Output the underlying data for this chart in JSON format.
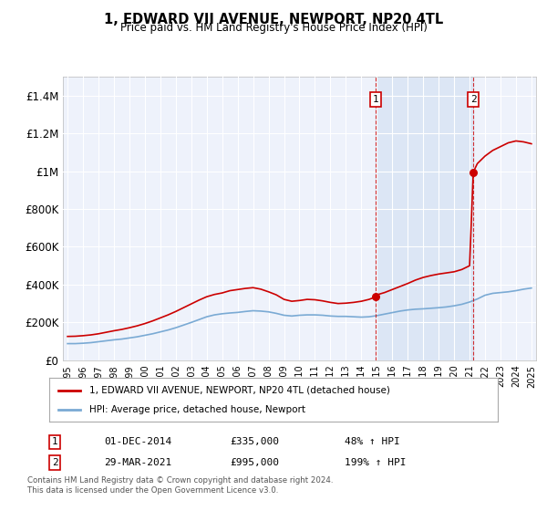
{
  "title": "1, EDWARD VII AVENUE, NEWPORT, NP20 4TL",
  "subtitle": "Price paid vs. HM Land Registry's House Price Index (HPI)",
  "legend_label_red": "1, EDWARD VII AVENUE, NEWPORT, NP20 4TL (detached house)",
  "legend_label_blue": "HPI: Average price, detached house, Newport",
  "sale1_date": "01-DEC-2014",
  "sale1_price": "£335,000",
  "sale1_pct": "48% ↑ HPI",
  "sale2_date": "29-MAR-2021",
  "sale2_price": "£995,000",
  "sale2_pct": "199% ↑ HPI",
  "footnote1": "Contains HM Land Registry data © Crown copyright and database right 2024.",
  "footnote2": "This data is licensed under the Open Government Licence v3.0.",
  "ylim": [
    0,
    1500000
  ],
  "yticks": [
    0,
    200000,
    400000,
    600000,
    800000,
    1000000,
    1200000,
    1400000
  ],
  "ytick_labels": [
    "£0",
    "£200K",
    "£400K",
    "£600K",
    "£800K",
    "£1M",
    "£1.2M",
    "£1.4M"
  ],
  "background_color": "#ffffff",
  "plot_bg_color": "#eef2fb",
  "grid_color": "#ffffff",
  "red_color": "#cc0000",
  "blue_color": "#7aaad4",
  "shade_color": "#dce6f5",
  "sale1_year": 2014.92,
  "sale2_year": 2021.24,
  "sale1_price_val": 335000,
  "sale2_price_val": 995000,
  "hpi_years": [
    1995,
    1995.5,
    1996,
    1996.5,
    1997,
    1997.5,
    1998,
    1998.5,
    1999,
    1999.5,
    2000,
    2000.5,
    2001,
    2001.5,
    2002,
    2002.5,
    2003,
    2003.5,
    2004,
    2004.5,
    2005,
    2005.5,
    2006,
    2006.5,
    2007,
    2007.5,
    2008,
    2008.5,
    2009,
    2009.5,
    2010,
    2010.5,
    2011,
    2011.5,
    2012,
    2012.5,
    2013,
    2013.5,
    2014,
    2014.5,
    2015,
    2015.5,
    2016,
    2016.5,
    2017,
    2017.5,
    2018,
    2018.5,
    2019,
    2019.5,
    2020,
    2020.5,
    2021,
    2021.5,
    2022,
    2022.5,
    2023,
    2023.5,
    2024,
    2024.5,
    2025
  ],
  "hpi_vals": [
    88000,
    88000,
    90000,
    93000,
    98000,
    103000,
    108000,
    112000,
    118000,
    124000,
    132000,
    140000,
    150000,
    160000,
    172000,
    186000,
    200000,
    215000,
    230000,
    240000,
    246000,
    250000,
    253000,
    258000,
    262000,
    260000,
    256000,
    248000,
    238000,
    234000,
    238000,
    240000,
    240000,
    238000,
    234000,
    232000,
    232000,
    230000,
    228000,
    230000,
    236000,
    244000,
    252000,
    260000,
    266000,
    270000,
    272000,
    275000,
    278000,
    282000,
    288000,
    296000,
    308000,
    324000,
    344000,
    354000,
    358000,
    362000,
    368000,
    376000,
    382000
  ],
  "red_years": [
    1995,
    1995.5,
    1996,
    1996.5,
    1997,
    1997.5,
    1998,
    1998.5,
    1999,
    1999.5,
    2000,
    2000.5,
    2001,
    2001.5,
    2002,
    2002.5,
    2003,
    2003.5,
    2004,
    2004.5,
    2005,
    2005.5,
    2006,
    2006.5,
    2007,
    2007.5,
    2008,
    2008.5,
    2009,
    2009.5,
    2010,
    2010.5,
    2011,
    2011.5,
    2012,
    2012.5,
    2013,
    2013.5,
    2014,
    2014.5,
    2014.92,
    2015,
    2015.5,
    2016,
    2016.5,
    2017,
    2017.5,
    2018,
    2018.5,
    2019,
    2019.5,
    2020,
    2020.5,
    2021,
    2021.24,
    2021.5,
    2022,
    2022.5,
    2023,
    2023.5,
    2024,
    2024.5,
    2025
  ],
  "red_vals": [
    126000,
    127000,
    130000,
    134000,
    140000,
    148000,
    156000,
    163000,
    172000,
    182000,
    194000,
    208000,
    224000,
    240000,
    258000,
    278000,
    298000,
    318000,
    336000,
    348000,
    356000,
    368000,
    374000,
    380000,
    384000,
    376000,
    362000,
    346000,
    322000,
    312000,
    316000,
    322000,
    320000,
    314000,
    306000,
    300000,
    302000,
    306000,
    312000,
    322000,
    335000,
    346000,
    358000,
    374000,
    390000,
    406000,
    424000,
    438000,
    448000,
    456000,
    462000,
    468000,
    480000,
    500000,
    995000,
    1040000,
    1080000,
    1110000,
    1130000,
    1150000,
    1160000,
    1155000,
    1145000
  ]
}
